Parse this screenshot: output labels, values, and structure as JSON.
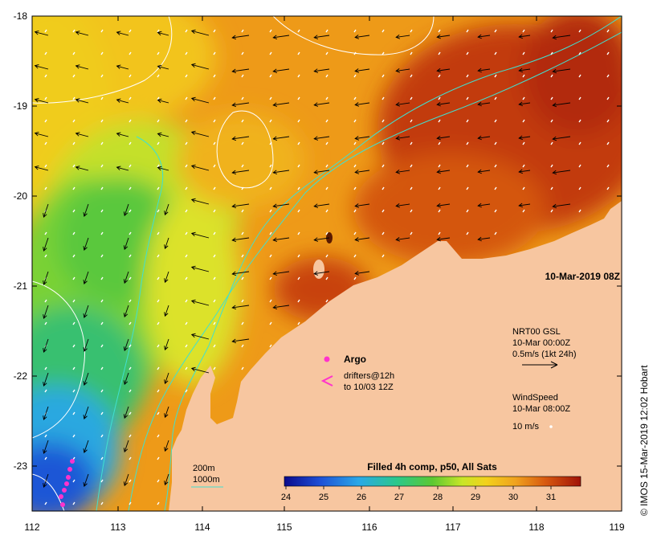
{
  "map": {
    "lon_ticks": [
      "112",
      "113",
      "114",
      "115",
      "116",
      "117",
      "118",
      "119"
    ],
    "lat_ticks": [
      "-18",
      "-19",
      "-20",
      "-21",
      "-22",
      "-23"
    ],
    "timestamp": "10-Mar-2019 08Z",
    "current_legend": {
      "title": "NRT00 GSL",
      "time": "10-Mar 00:00Z",
      "scale": "0.5m/s (1kt 24h)"
    },
    "wind_legend": {
      "title": "WindSpeed",
      "time": "10-Mar 08:00Z",
      "scale": "10 m/s"
    },
    "argo_label": "Argo",
    "drifters_label_1": "drifters@12h",
    "drifters_label_2": "to 10/03 12Z",
    "isobaths": {
      "shallow": "200m",
      "deep": "1000m"
    },
    "colorbar": {
      "title": "Filled 4h comp, p50, All Sats",
      "ticks": [
        "24",
        "25",
        "26",
        "27",
        "28",
        "29",
        "30",
        "31"
      ]
    },
    "credit": "© IMOS 15-Mar-2019 12:02 Hobart",
    "colors": {
      "land": "#f7c6a0",
      "isobath": "#40e0d0",
      "argo": "#ff33cc"
    }
  }
}
